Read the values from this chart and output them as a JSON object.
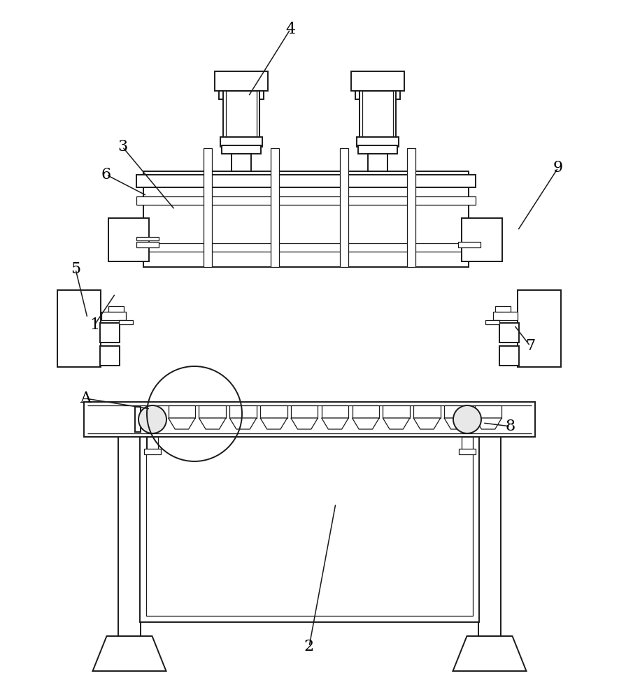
{
  "bg_color": "#ffffff",
  "line_color": "#1a1a1a",
  "lw": 1.4,
  "tlw": 0.9
}
